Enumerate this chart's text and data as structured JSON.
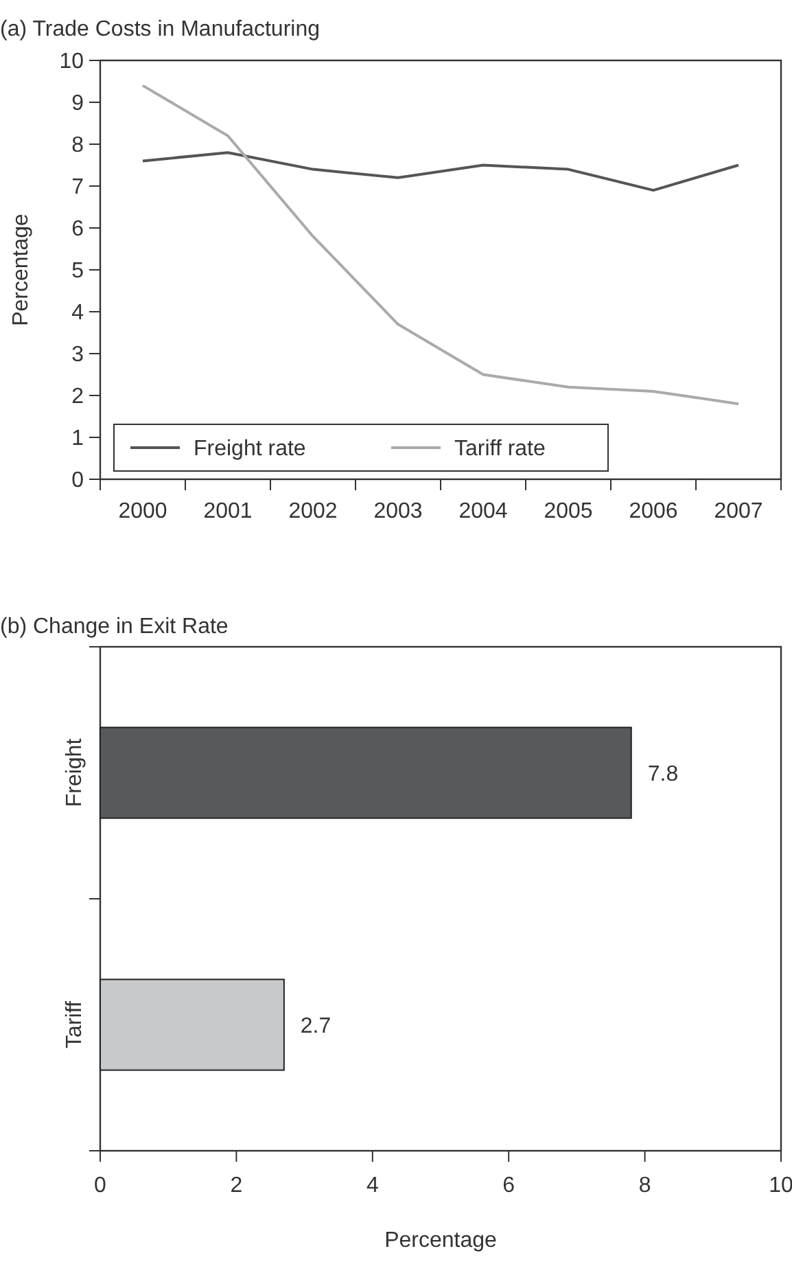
{
  "chart_data": [
    {
      "type": "line",
      "title": "(a) Trade Costs in Manufacturing",
      "ylabel": "Percentage",
      "categories": [
        "2000",
        "2001",
        "2002",
        "2003",
        "2004",
        "2005",
        "2006",
        "2007"
      ],
      "ylim": [
        0,
        10
      ],
      "yticks": [
        0,
        1,
        2,
        3,
        4,
        5,
        6,
        7,
        8,
        9,
        10
      ],
      "grid": false,
      "legend": "bottom left",
      "marker": "none",
      "line_style": "solid",
      "series": [
        {
          "name": "Freight rate",
          "color": "#555555",
          "values": [
            7.6,
            7.8,
            7.4,
            7.2,
            7.5,
            7.4,
            6.9,
            7.5
          ]
        },
        {
          "name": "Tariff rate",
          "color": "#aaaaaa",
          "values": [
            9.4,
            8.2,
            5.8,
            3.7,
            2.5,
            2.2,
            2.1,
            1.8
          ]
        }
      ]
    },
    {
      "type": "bar",
      "title": "(b) Change in Exit Rate",
      "xlabel": "Percentage",
      "orientation": "horizontal",
      "categories": [
        "Freight",
        "Tariff"
      ],
      "values": [
        7.8,
        2.7
      ],
      "colors": [
        "#58595b",
        "#c8c9cb"
      ],
      "xlim": [
        0,
        10
      ],
      "xticks": [
        0,
        2,
        4,
        6,
        8,
        10
      ],
      "data_labels": true,
      "grid": false
    }
  ]
}
